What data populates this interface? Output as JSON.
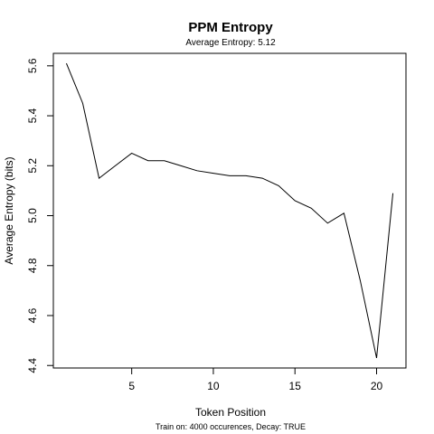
{
  "chart_data": {
    "type": "line",
    "title": "PPM Entropy",
    "subtitle": "Average Entropy: 5.12",
    "xlabel": "Token Position",
    "ylabel": "Average Entropy (bits)",
    "footer": "Train on: 4000 occurences, Decay: TRUE",
    "xlim": [
      0.2,
      21.8
    ],
    "ylim": [
      4.39,
      5.65
    ],
    "xticks": [
      5,
      10,
      15,
      20
    ],
    "yticks": [
      4.4,
      4.6,
      4.8,
      5.0,
      5.2,
      5.4,
      5.6
    ],
    "yticklabels": [
      "4.4",
      "4.6",
      "4.8",
      "5.0",
      "5.2",
      "5.4",
      "5.6"
    ],
    "grid": false,
    "line_color": "#000000",
    "series": [
      {
        "x": [
          1,
          2,
          3,
          4,
          5,
          6,
          7,
          8,
          9,
          10,
          11,
          12,
          13,
          14,
          15,
          16,
          17,
          18,
          19,
          20,
          21
        ],
        "values": [
          5.61,
          5.45,
          5.15,
          5.2,
          5.25,
          5.22,
          5.22,
          5.2,
          5.18,
          5.17,
          5.16,
          5.16,
          5.15,
          5.12,
          5.06,
          5.03,
          4.97,
          5.01,
          4.74,
          4.43,
          5.09
        ]
      }
    ]
  }
}
